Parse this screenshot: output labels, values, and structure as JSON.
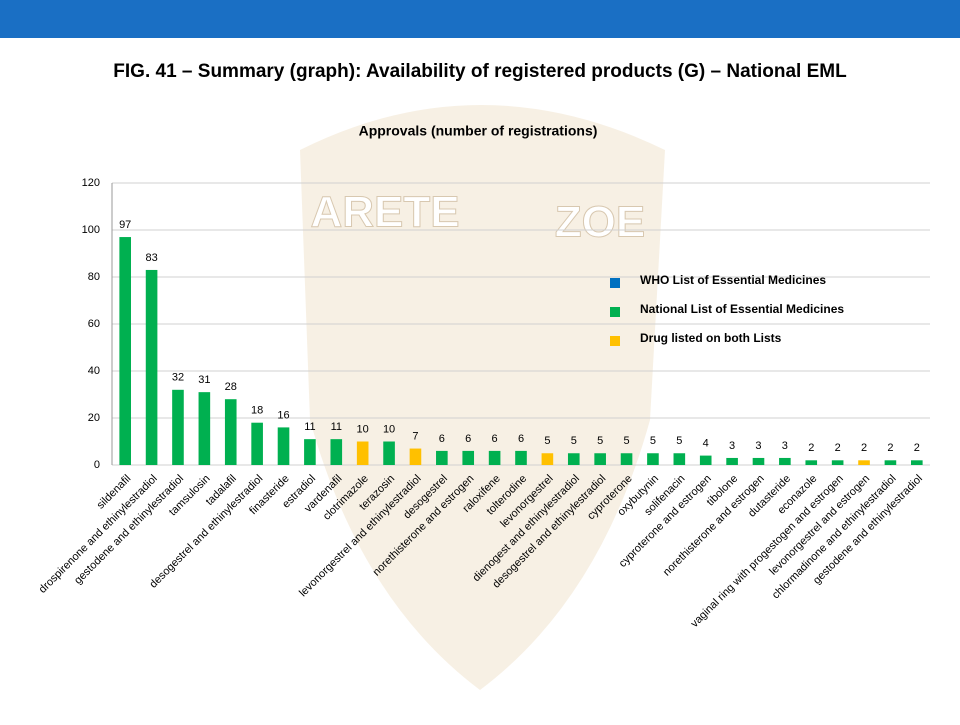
{
  "header": {
    "title": "FIG. 41 – Summary (graph): Availability of registered products (G) – National EML"
  },
  "watermark": [
    "ARETE",
    "ZOE"
  ],
  "chart_data": {
    "type": "bar",
    "title": "Approvals (number of registrations)",
    "categories": [
      "sildenafil",
      "drospirenone and ethinylestradiol",
      "gestodene and ethinylestradiol",
      "tamsulosin",
      "tadalafil",
      "desogestrel and ethinylestradiol",
      "finasteride",
      "estradiol",
      "vardenafil",
      "clotrimazole",
      "terazosin",
      "levonorgestrel and ethinylestradiol",
      "desogestrel",
      "norethisterone and estrogen",
      "raloxifene",
      "tolterodine",
      "levonorgestrel",
      "dienogest and ethinylestradiol",
      "desogestrel and ethinylestradiol",
      "cyproterone",
      "oxybutynin",
      "solifenacin",
      "cyproterone and estrogen",
      "tibolone",
      "norethisterone and estrogen",
      "dutasteride",
      "econazole",
      "vaginal ring with progestogen and estrogen",
      "levonorgestrel and estrogen",
      "chlormadinone and ethinylestradiol",
      "gestodene and ethinylestradiol"
    ],
    "values": [
      97,
      83,
      32,
      31,
      28,
      18,
      16,
      11,
      11,
      10,
      10,
      7,
      6,
      6,
      6,
      6,
      5,
      5,
      5,
      5,
      5,
      5,
      4,
      3,
      3,
      3,
      2,
      2,
      2,
      2,
      2
    ],
    "colors": [
      "#00b050",
      "#00b050",
      "#00b050",
      "#00b050",
      "#00b050",
      "#00b050",
      "#00b050",
      "#00b050",
      "#00b050",
      "#ffc000",
      "#00b050",
      "#ffc000",
      "#00b050",
      "#00b050",
      "#00b050",
      "#00b050",
      "#ffc000",
      "#00b050",
      "#00b050",
      "#00b050",
      "#00b050",
      "#00b050",
      "#00b050",
      "#00b050",
      "#00b050",
      "#00b050",
      "#00b050",
      "#00b050",
      "#ffc000",
      "#00b050",
      "#00b050"
    ],
    "legend": [
      {
        "name": "WHO List of Essential Medicines",
        "color": "#0070c0"
      },
      {
        "name": "National List of Essential Medicines",
        "color": "#00b050"
      },
      {
        "name": "Drug listed on both Lists",
        "color": "#ffc000"
      }
    ],
    "ylim": [
      0,
      120
    ],
    "yticks": [
      0,
      20,
      40,
      60,
      80,
      100,
      120
    ],
    "grid": true
  }
}
